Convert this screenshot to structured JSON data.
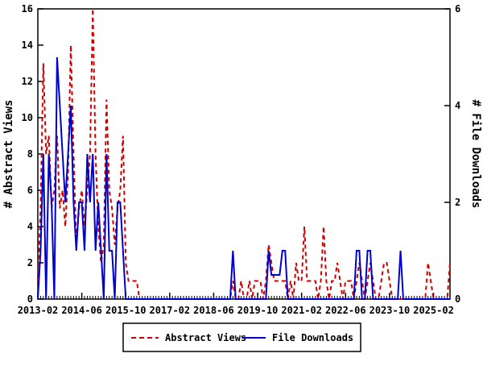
{
  "chart_data": {
    "type": "line",
    "title": "",
    "x_start_month": "2013-02",
    "months_total": 151,
    "x_tick_interval_months": 16,
    "x_tick_labels": [
      "2013-02",
      "2014-06",
      "2015-10",
      "2017-02",
      "2018-06",
      "2019-10",
      "2021-02",
      "2022-06",
      "2023-10",
      "2025-02"
    ],
    "left_axis": {
      "label": "# Abstract Views",
      "min": 0,
      "max": 16,
      "tick_step": 2,
      "tick_labels": [
        "0",
        "2",
        "4",
        "6",
        "8",
        "10",
        "12",
        "14",
        "16"
      ]
    },
    "right_axis": {
      "label": "# File Downloads",
      "min": 0,
      "max": 6,
      "tick_step": 2,
      "tick_labels": [
        "0",
        "2",
        "4",
        "6"
      ]
    },
    "grid": false,
    "legend_position": "bottom-center",
    "background_color": "#ffffff",
    "axis_color": "#000000",
    "series": [
      {
        "name": "Abstract Views",
        "axis": "left",
        "color": "#cc0000",
        "style": "dashed",
        "values": [
          1,
          5,
          13,
          8,
          9,
          5,
          6,
          9,
          5,
          6,
          4,
          7,
          14,
          8,
          3,
          5,
          6,
          4,
          6,
          8,
          16,
          8,
          4,
          2,
          3,
          11,
          6,
          5,
          3,
          5,
          6,
          9,
          2,
          1,
          1,
          1,
          1,
          0,
          0,
          0,
          0,
          0,
          0,
          0,
          0,
          0,
          0,
          0,
          0,
          0,
          0,
          0,
          0,
          0,
          0,
          0,
          0,
          0,
          0,
          0,
          0,
          0,
          0,
          0,
          0,
          0,
          0,
          0,
          0,
          0,
          0,
          1,
          0,
          0,
          1,
          0,
          0,
          1,
          0,
          1,
          1,
          1,
          0,
          1,
          3,
          2,
          1,
          1,
          1,
          1,
          1,
          0,
          1,
          0,
          2,
          1,
          1,
          4,
          1,
          1,
          1,
          1,
          0,
          1,
          4,
          1,
          0,
          1,
          1,
          2,
          1,
          0,
          1,
          1,
          1,
          0,
          1,
          2,
          1,
          0,
          1,
          2,
          1,
          0,
          0,
          1,
          2,
          2,
          1,
          0,
          0,
          0,
          0,
          0,
          0,
          0,
          0,
          0,
          0,
          0,
          0,
          0,
          2,
          1,
          0,
          0,
          0,
          0,
          0,
          0,
          2
        ]
      },
      {
        "name": "File Downloads",
        "axis": "right",
        "color": "#0000cc",
        "style": "solid",
        "values": [
          0,
          1,
          3,
          0,
          3,
          2,
          0,
          5,
          4,
          3,
          2,
          3,
          4,
          2,
          1,
          2,
          2,
          1,
          3,
          2,
          3,
          1,
          2,
          1,
          0,
          3,
          1,
          1,
          0,
          2,
          2,
          1,
          0,
          0,
          0,
          0,
          0,
          0,
          0,
          0,
          0,
          0,
          0,
          0,
          0,
          0,
          0,
          0,
          0,
          0,
          0,
          0,
          0,
          0,
          0,
          0,
          0,
          0,
          0,
          0,
          0,
          0,
          0,
          0,
          0,
          0,
          0,
          0,
          0,
          0,
          0,
          1,
          0,
          0,
          0,
          0,
          0,
          0,
          0,
          0,
          0,
          0,
          0,
          0,
          1,
          0.5,
          0.5,
          0.5,
          0.5,
          1,
          1,
          0,
          0,
          0,
          0,
          0,
          0,
          0,
          0,
          0,
          0,
          0,
          0,
          0,
          0,
          0,
          0,
          0,
          0,
          0,
          0,
          0,
          0,
          0,
          0,
          0,
          1,
          1,
          0,
          0,
          1,
          1,
          0,
          0,
          0,
          0,
          0,
          0,
          0,
          0,
          0,
          0,
          1,
          0,
          0,
          0,
          0,
          0,
          0,
          0,
          0,
          0,
          0,
          0,
          0,
          0,
          0,
          0,
          0,
          0,
          0
        ]
      }
    ],
    "legend": {
      "items": [
        "Abstract Views",
        "File Downloads"
      ]
    }
  }
}
